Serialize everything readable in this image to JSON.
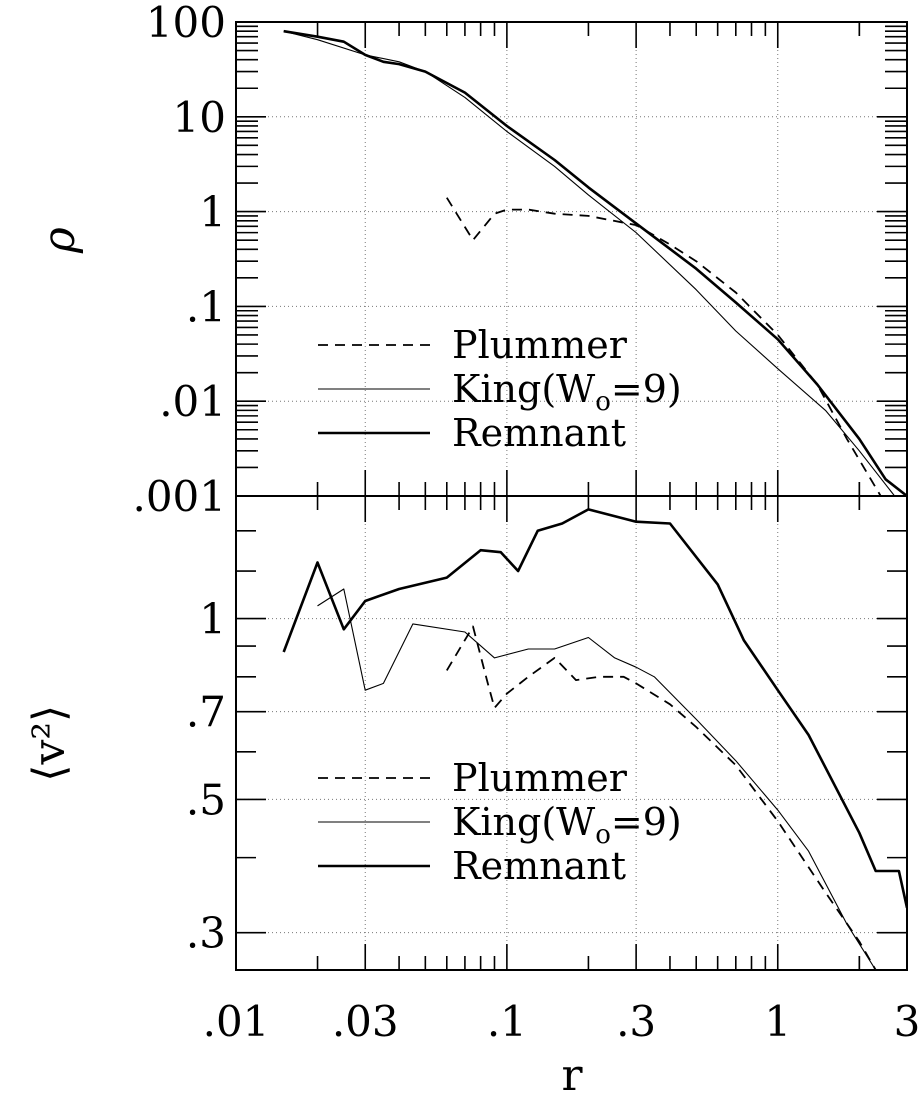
{
  "chart_data": [
    {
      "type": "line",
      "title": "",
      "xlabel": "r",
      "ylabel": "ρ",
      "x_scale": "log",
      "y_scale": "log",
      "xlim": [
        0.01,
        3
      ],
      "ylim": [
        0.001,
        100
      ],
      "grid": true,
      "y_tick_labels": [
        "100",
        "10",
        "1",
        ".1",
        ".01",
        ".001"
      ],
      "y_tick_values": [
        100,
        10,
        1,
        0.1,
        0.01,
        0.001
      ],
      "x_tick_labels": [
        ".01",
        ".03",
        ".1",
        ".3",
        "1",
        "3"
      ],
      "x_tick_values": [
        0.01,
        0.03,
        0.1,
        0.3,
        1,
        3
      ],
      "legend": {
        "position": "bottom-left",
        "entries": [
          "Plummer",
          "King(W",
          "o",
          "=9)",
          "Remnant"
        ]
      },
      "series": [
        {
          "name": "Plummer",
          "style": "dashed",
          "points": [
            [
              0.06,
              1.4
            ],
            [
              0.075,
              0.5
            ],
            [
              0.09,
              0.95
            ],
            [
              0.1,
              1.05
            ],
            [
              0.12,
              1.05
            ],
            [
              0.15,
              0.95
            ],
            [
              0.2,
              0.9
            ],
            [
              0.3,
              0.72
            ],
            [
              0.4,
              0.45
            ],
            [
              0.5,
              0.3
            ],
            [
              0.7,
              0.14
            ],
            [
              1.0,
              0.05
            ],
            [
              1.4,
              0.015
            ],
            [
              1.8,
              0.004
            ],
            [
              2.4,
              0.001
            ]
          ]
        },
        {
          "name": "King(Wo=9)",
          "style": "thin",
          "points": [
            [
              0.015,
              80
            ],
            [
              0.02,
              65
            ],
            [
              0.03,
              45
            ],
            [
              0.04,
              38
            ],
            [
              0.05,
              30
            ],
            [
              0.07,
              16
            ],
            [
              0.1,
              7
            ],
            [
              0.15,
              3
            ],
            [
              0.2,
              1.5
            ],
            [
              0.3,
              0.6
            ],
            [
              0.5,
              0.15
            ],
            [
              0.7,
              0.055
            ],
            [
              1.0,
              0.022
            ],
            [
              1.5,
              0.008
            ],
            [
              2.0,
              0.003
            ],
            [
              2.7,
              0.001
            ],
            [
              3.0,
              0.001
            ]
          ]
        },
        {
          "name": "Remnant",
          "style": "thick",
          "points": [
            [
              0.015,
              80
            ],
            [
              0.02,
              70
            ],
            [
              0.025,
              62
            ],
            [
              0.03,
              45
            ],
            [
              0.035,
              38
            ],
            [
              0.04,
              36
            ],
            [
              0.05,
              30
            ],
            [
              0.07,
              18
            ],
            [
              0.1,
              8
            ],
            [
              0.15,
              3.5
            ],
            [
              0.2,
              1.8
            ],
            [
              0.3,
              0.75
            ],
            [
              0.5,
              0.25
            ],
            [
              0.7,
              0.11
            ],
            [
              1.0,
              0.045
            ],
            [
              1.4,
              0.015
            ],
            [
              2.0,
              0.004
            ],
            [
              2.5,
              0.0015
            ],
            [
              3.0,
              0.001
            ]
          ]
        }
      ]
    },
    {
      "type": "line",
      "title": "",
      "xlabel": "r",
      "ylabel": "⟨v²⟩",
      "x_scale": "log",
      "y_scale": "log",
      "xlim": [
        0.01,
        3
      ],
      "ylim": [
        0.26,
        1.6
      ],
      "grid": true,
      "y_tick_labels": [
        "1",
        ".7",
        ".5",
        ".3"
      ],
      "y_tick_values": [
        1,
        0.7,
        0.5,
        0.3
      ],
      "x_tick_labels": [
        ".01",
        ".03",
        ".1",
        ".3",
        "1",
        "3"
      ],
      "x_tick_values": [
        0.01,
        0.03,
        0.1,
        0.3,
        1,
        3
      ],
      "legend": {
        "position": "bottom-left",
        "entries": [
          "Plummer",
          "King(W",
          "o",
          "=9)",
          "Remnant"
        ]
      },
      "series": [
        {
          "name": "Plummer",
          "style": "dashed",
          "points": [
            [
              0.06,
              0.82
            ],
            [
              0.075,
              0.97
            ],
            [
              0.085,
              0.78
            ],
            [
              0.09,
              0.71
            ],
            [
              0.1,
              0.75
            ],
            [
              0.12,
              0.8
            ],
            [
              0.15,
              0.86
            ],
            [
              0.18,
              0.79
            ],
            [
              0.22,
              0.8
            ],
            [
              0.27,
              0.8
            ],
            [
              0.3,
              0.78
            ],
            [
              0.4,
              0.72
            ],
            [
              0.5,
              0.66
            ],
            [
              0.7,
              0.57
            ],
            [
              1.0,
              0.46
            ],
            [
              1.5,
              0.35
            ],
            [
              2.0,
              0.29
            ],
            [
              2.3,
              0.26
            ]
          ]
        },
        {
          "name": "King(Wo=9)",
          "style": "thin",
          "points": [
            [
              0.02,
              1.05
            ],
            [
              0.025,
              1.12
            ],
            [
              0.03,
              0.76
            ],
            [
              0.035,
              0.78
            ],
            [
              0.045,
              0.98
            ],
            [
              0.07,
              0.95
            ],
            [
              0.09,
              0.86
            ],
            [
              0.12,
              0.89
            ],
            [
              0.15,
              0.89
            ],
            [
              0.2,
              0.93
            ],
            [
              0.25,
              0.86
            ],
            [
              0.3,
              0.83
            ],
            [
              0.35,
              0.8
            ],
            [
              0.5,
              0.68
            ],
            [
              0.7,
              0.58
            ],
            [
              1.0,
              0.48
            ],
            [
              1.3,
              0.41
            ],
            [
              1.8,
              0.31
            ],
            [
              2.3,
              0.26
            ]
          ]
        },
        {
          "name": "Remnant",
          "style": "thick",
          "points": [
            [
              0.015,
              0.88
            ],
            [
              0.02,
              1.24
            ],
            [
              0.025,
              0.96
            ],
            [
              0.03,
              1.07
            ],
            [
              0.04,
              1.12
            ],
            [
              0.06,
              1.17
            ],
            [
              0.08,
              1.3
            ],
            [
              0.095,
              1.29
            ],
            [
              0.11,
              1.2
            ],
            [
              0.13,
              1.4
            ],
            [
              0.16,
              1.44
            ],
            [
              0.2,
              1.52
            ],
            [
              0.3,
              1.45
            ],
            [
              0.4,
              1.44
            ],
            [
              0.6,
              1.14
            ],
            [
              0.75,
              0.92
            ],
            [
              1.0,
              0.76
            ],
            [
              1.3,
              0.64
            ],
            [
              2.0,
              0.44
            ],
            [
              2.3,
              0.38
            ],
            [
              2.8,
              0.38
            ],
            [
              3.0,
              0.33
            ]
          ]
        }
      ]
    }
  ]
}
